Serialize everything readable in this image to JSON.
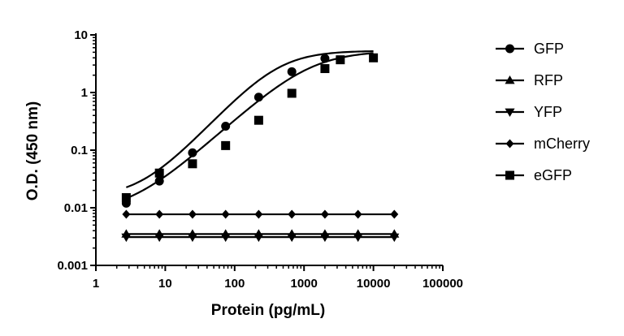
{
  "chart_data": {
    "type": "scatter",
    "title": "",
    "xlabel": "Protein (pg/mL)",
    "ylabel": "O.D. (450 nm)",
    "x_scale": "log",
    "y_scale": "log",
    "xlim": [
      1,
      100000
    ],
    "ylim": [
      0.001,
      10
    ],
    "x_ticks": [
      1,
      10,
      100,
      1000,
      10000,
      100000
    ],
    "x_tick_labels": [
      "1",
      "10",
      "100",
      "1000",
      "10000",
      "100000"
    ],
    "y_ticks": [
      0.001,
      0.01,
      0.1,
      1,
      10
    ],
    "y_tick_labels": [
      "0.001",
      "0.01",
      "0.1",
      "1",
      "10"
    ],
    "grid": false,
    "legend_position": "right",
    "series": [
      {
        "name": "GFP",
        "marker": "circle",
        "points": [
          [
            2.74,
            0.012
          ],
          [
            8.23,
            0.029
          ],
          [
            24.7,
            0.09
          ],
          [
            74.1,
            0.26
          ],
          [
            222,
            0.83
          ],
          [
            667,
            2.3
          ],
          [
            2000,
            3.9
          ]
        ],
        "fit": {
          "bottom": 0.015,
          "top": 5.3,
          "ec50": 420,
          "hill": 1.3,
          "x_range": [
            2.74,
            10000
          ]
        }
      },
      {
        "name": "RFP",
        "marker": "triangle-up",
        "points": [
          [
            2.74,
            0.0035
          ],
          [
            8.23,
            0.0035
          ],
          [
            24.7,
            0.0035
          ],
          [
            74.1,
            0.0035
          ],
          [
            222,
            0.0035
          ],
          [
            667,
            0.0035
          ],
          [
            2000,
            0.0035
          ],
          [
            6000,
            0.0035
          ],
          [
            20000,
            0.0035
          ]
        ],
        "fit": {
          "constant": 0.0035,
          "x_range": [
            2.74,
            20000
          ]
        }
      },
      {
        "name": "YFP",
        "marker": "triangle-down",
        "points": [
          [
            2.74,
            0.0031
          ],
          [
            8.23,
            0.0031
          ],
          [
            24.7,
            0.0031
          ],
          [
            74.1,
            0.0031
          ],
          [
            222,
            0.0031
          ],
          [
            667,
            0.0031
          ],
          [
            2000,
            0.0031
          ],
          [
            6000,
            0.0031
          ],
          [
            20000,
            0.0031
          ]
        ],
        "fit": {
          "constant": 0.0031,
          "x_range": [
            2.74,
            20000
          ]
        }
      },
      {
        "name": "mCherry",
        "marker": "diamond",
        "points": [
          [
            2.74,
            0.0077
          ],
          [
            8.23,
            0.0077
          ],
          [
            24.7,
            0.0077
          ],
          [
            74.1,
            0.0077
          ],
          [
            222,
            0.0077
          ],
          [
            667,
            0.0077
          ],
          [
            2000,
            0.0077
          ],
          [
            6000,
            0.0077
          ],
          [
            20000,
            0.0077
          ]
        ],
        "fit": {
          "constant": 0.0077,
          "x_range": [
            2.74,
            20000
          ]
        }
      },
      {
        "name": "eGFP",
        "marker": "square",
        "points": [
          [
            2.74,
            0.015
          ],
          [
            8.23,
            0.04
          ],
          [
            24.7,
            0.058
          ],
          [
            74.1,
            0.12
          ],
          [
            222,
            0.33
          ],
          [
            667,
            0.97
          ],
          [
            2000,
            2.6
          ],
          [
            3333,
            3.7
          ],
          [
            10000,
            4.0
          ]
        ],
        "fit": {
          "bottom": 0.008,
          "top": 5.3,
          "ec50": 1200,
          "hill": 1.1,
          "x_range": [
            2.74,
            10000
          ]
        }
      }
    ]
  }
}
